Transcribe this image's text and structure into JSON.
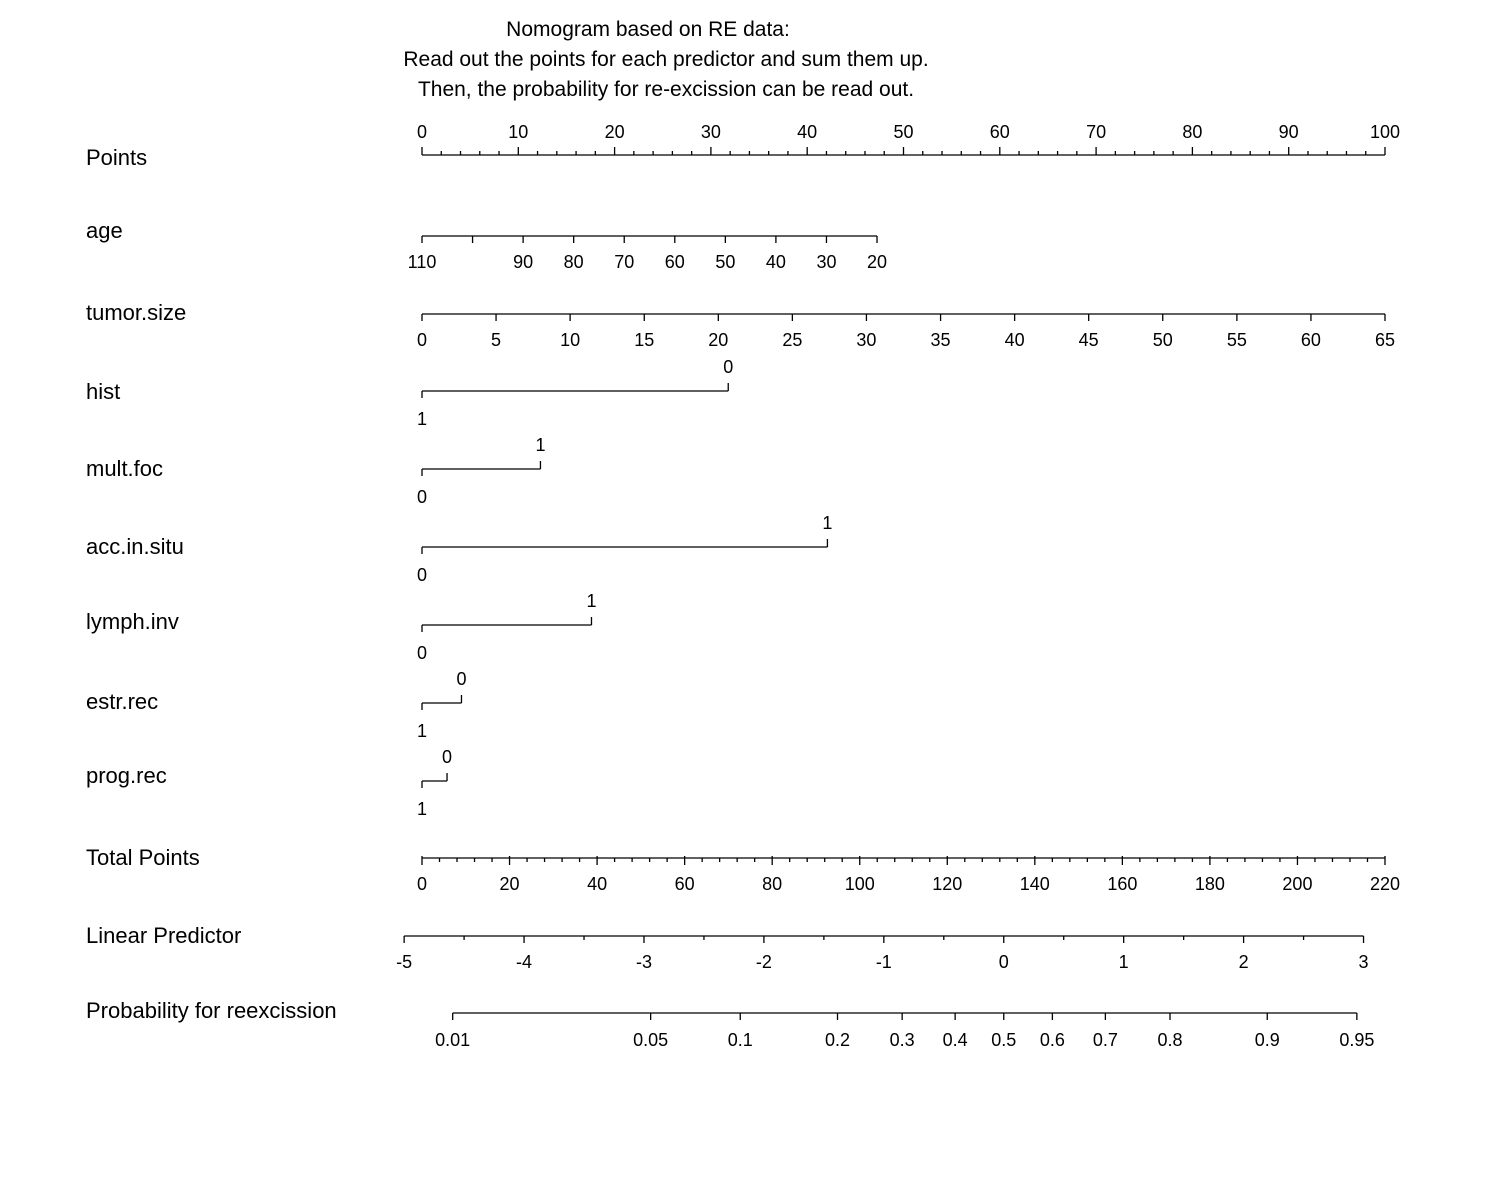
{
  "chart_data": {
    "type": "nomogram",
    "title": [
      "Nomogram based on RE data:",
      "Read out the points for each predictor and sum them up.",
      "Then, the probability for re-excission can be read out."
    ],
    "rows": [
      {
        "label": "Points",
        "kind": "points",
        "labels_above": true,
        "major": [
          0,
          10,
          20,
          30,
          40,
          50,
          60,
          70,
          80,
          90,
          100
        ],
        "minor": [
          2,
          4,
          6,
          8,
          12,
          14,
          16,
          18,
          22,
          24,
          26,
          28,
          32,
          34,
          36,
          38,
          42,
          44,
          46,
          48,
          52,
          54,
          56,
          58,
          62,
          64,
          66,
          68,
          72,
          74,
          76,
          78,
          82,
          84,
          86,
          88,
          92,
          94,
          96,
          98
        ],
        "ticks": [
          {
            "label": "0",
            "points": 0
          },
          {
            "label": "10",
            "points": 10
          },
          {
            "label": "20",
            "points": 20
          },
          {
            "label": "30",
            "points": 30
          },
          {
            "label": "40",
            "points": 40
          },
          {
            "label": "50",
            "points": 50
          },
          {
            "label": "60",
            "points": 60
          },
          {
            "label": "70",
            "points": 70
          },
          {
            "label": "80",
            "points": 80
          },
          {
            "label": "90",
            "points": 90
          },
          {
            "label": "100",
            "points": 100
          }
        ]
      },
      {
        "label": "age",
        "kind": "continuous",
        "ticks": [
          {
            "label": "110",
            "points": 0
          },
          {
            "label": "",
            "points": 5.25
          },
          {
            "label": "90",
            "points": 10.5
          },
          {
            "label": "80",
            "points": 15.75
          },
          {
            "label": "70",
            "points": 21.0
          },
          {
            "label": "60",
            "points": 26.25
          },
          {
            "label": "50",
            "points": 31.5
          },
          {
            "label": "40",
            "points": 36.75
          },
          {
            "label": "30",
            "points": 42.0
          },
          {
            "label": "20",
            "points": 47.25
          }
        ]
      },
      {
        "label": "tumor.size",
        "kind": "continuous",
        "ticks": [
          {
            "label": "0",
            "points": 0
          },
          {
            "label": "5",
            "points": 7.69
          },
          {
            "label": "10",
            "points": 15.38
          },
          {
            "label": "15",
            "points": 23.08
          },
          {
            "label": "20",
            "points": 30.77
          },
          {
            "label": "25",
            "points": 38.46
          },
          {
            "label": "30",
            "points": 46.15
          },
          {
            "label": "35",
            "points": 53.85
          },
          {
            "label": "40",
            "points": 61.54
          },
          {
            "label": "45",
            "points": 69.23
          },
          {
            "label": "50",
            "points": 76.92
          },
          {
            "label": "55",
            "points": 84.62
          },
          {
            "label": "60",
            "points": 92.31
          },
          {
            "label": "65",
            "points": 100
          }
        ]
      },
      {
        "label": "hist",
        "kind": "categorical",
        "levels": [
          {
            "label": "1",
            "points": 0,
            "side": "below"
          },
          {
            "label": "0",
            "points": 31.8,
            "side": "above"
          }
        ]
      },
      {
        "label": "mult.foc",
        "kind": "categorical",
        "levels": [
          {
            "label": "0",
            "points": 0,
            "side": "below"
          },
          {
            "label": "1",
            "points": 12.3,
            "side": "above"
          }
        ]
      },
      {
        "label": "acc.in.situ",
        "kind": "categorical",
        "levels": [
          {
            "label": "0",
            "points": 0,
            "side": "below"
          },
          {
            "label": "1",
            "points": 42.1,
            "side": "above"
          }
        ]
      },
      {
        "label": "lymph.inv",
        "kind": "categorical",
        "levels": [
          {
            "label": "0",
            "points": 0,
            "side": "below"
          },
          {
            "label": "1",
            "points": 17.6,
            "side": "above"
          }
        ]
      },
      {
        "label": "estr.rec",
        "kind": "categorical",
        "levels": [
          {
            "label": "1",
            "points": 0,
            "side": "below"
          },
          {
            "label": "0",
            "points": 4.1,
            "side": "above"
          }
        ]
      },
      {
        "label": "prog.rec",
        "kind": "categorical",
        "levels": [
          {
            "label": "1",
            "points": 0,
            "side": "below"
          },
          {
            "label": "0",
            "points": 2.6,
            "side": "above"
          }
        ]
      },
      {
        "label": "Total Points",
        "kind": "total_points",
        "major": [
          0,
          20,
          40,
          60,
          80,
          100,
          120,
          140,
          160,
          180,
          200,
          220
        ],
        "minor": [
          4,
          8,
          12,
          16,
          24,
          28,
          32,
          36,
          44,
          48,
          52,
          56,
          64,
          68,
          72,
          76,
          84,
          88,
          92,
          96,
          104,
          108,
          112,
          116,
          124,
          128,
          132,
          136,
          144,
          148,
          152,
          156,
          164,
          168,
          172,
          176,
          184,
          188,
          192,
          196,
          204,
          208,
          212,
          216
        ],
        "range": [
          0,
          220
        ],
        "ticks": [
          {
            "label": "0",
            "total": 0
          },
          {
            "label": "20",
            "total": 20
          },
          {
            "label": "40",
            "total": 40
          },
          {
            "label": "60",
            "total": 60
          },
          {
            "label": "80",
            "total": 80
          },
          {
            "label": "100",
            "total": 100
          },
          {
            "label": "120",
            "total": 120
          },
          {
            "label": "140",
            "total": 140
          },
          {
            "label": "160",
            "total": 160
          },
          {
            "label": "180",
            "total": 180
          },
          {
            "label": "200",
            "total": 200
          },
          {
            "label": "220",
            "total": 220
          }
        ]
      },
      {
        "label": "Linear Predictor",
        "kind": "linear_predictor",
        "major": [
          -5,
          -4,
          -3,
          -2,
          -1,
          0,
          1,
          2,
          3
        ],
        "minor": [
          -4.5,
          -3.5,
          -2.5,
          -1.5,
          -0.5,
          0.5,
          1.5,
          2.5
        ],
        "mapping": {
          "lp_at_total_0": -4.851,
          "lp_per_total_point": 0.0365
        },
        "ticks": [
          {
            "label": "-5",
            "lp": -5
          },
          {
            "label": "-4",
            "lp": -4
          },
          {
            "label": "-3",
            "lp": -3
          },
          {
            "label": "-2",
            "lp": -2
          },
          {
            "label": "-1",
            "lp": -1
          },
          {
            "label": "0",
            "lp": 0
          },
          {
            "label": "1",
            "lp": 1
          },
          {
            "label": "2",
            "lp": 2
          },
          {
            "label": "3",
            "lp": 3
          }
        ]
      },
      {
        "label": "Probability for reexcission",
        "kind": "probability",
        "ticks": [
          {
            "label": "0.01",
            "p": 0.01
          },
          {
            "label": "0.05",
            "p": 0.05
          },
          {
            "label": "0.1",
            "p": 0.1
          },
          {
            "label": "0.2",
            "p": 0.2
          },
          {
            "label": "0.3",
            "p": 0.3
          },
          {
            "label": "0.4",
            "p": 0.4
          },
          {
            "label": "0.5",
            "p": 0.5
          },
          {
            "label": "0.6",
            "p": 0.6
          },
          {
            "label": "0.7",
            "p": 0.7
          },
          {
            "label": "0.8",
            "p": 0.8
          },
          {
            "label": "0.9",
            "p": 0.9
          },
          {
            "label": "0.95",
            "p": 0.95
          }
        ]
      }
    ]
  }
}
